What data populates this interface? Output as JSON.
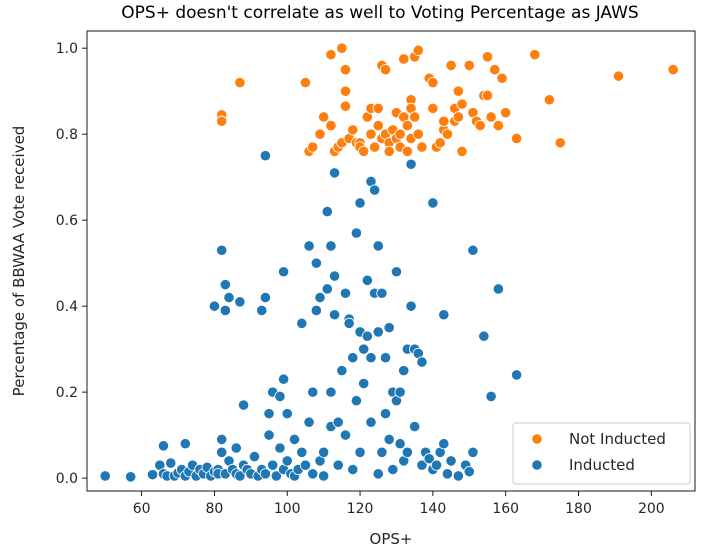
{
  "chart_data": {
    "type": "scatter",
    "title": "OPS+ doesn't correlate as well to Voting Percentage as JAWS",
    "xlabel": "OPS+",
    "ylabel": "Percentage of BBWAA Vote received",
    "xlim": [
      45,
      212
    ],
    "ylim": [
      -0.03,
      1.04
    ],
    "xticks": [
      60,
      80,
      100,
      120,
      140,
      160,
      180,
      200
    ],
    "yticks": [
      0.0,
      0.2,
      0.4,
      0.6,
      0.8,
      1.0
    ],
    "xtick_labels": [
      "60",
      "80",
      "100",
      "120",
      "140",
      "160",
      "180",
      "200"
    ],
    "ytick_labels": [
      "0.0",
      "0.2",
      "0.4",
      "0.6",
      "0.8",
      "1.0"
    ],
    "grid": false,
    "legend_position": "lower-right",
    "legend_order": [
      "Not Inducted",
      "Inducted"
    ],
    "series": [
      {
        "name": "Not Inducted",
        "color": "#ff7f0e",
        "points": [
          [
            82,
            0.845
          ],
          [
            82,
            0.83
          ],
          [
            87,
            0.92
          ],
          [
            105,
            0.92
          ],
          [
            106,
            0.76
          ],
          [
            107,
            0.77
          ],
          [
            109,
            0.8
          ],
          [
            110,
            0.84
          ],
          [
            112,
            0.82
          ],
          [
            112,
            0.985
          ],
          [
            113,
            0.76
          ],
          [
            114,
            0.77
          ],
          [
            115,
            0.78
          ],
          [
            115,
            1.0
          ],
          [
            116,
            0.95
          ],
          [
            116,
            0.9
          ],
          [
            116,
            0.865
          ],
          [
            117,
            0.79
          ],
          [
            118,
            0.81
          ],
          [
            119,
            0.78
          ],
          [
            120,
            0.78
          ],
          [
            120,
            0.77
          ],
          [
            121,
            0.76
          ],
          [
            122,
            0.84
          ],
          [
            123,
            0.86
          ],
          [
            123,
            0.8
          ],
          [
            124,
            0.77
          ],
          [
            125,
            0.86
          ],
          [
            125,
            0.82
          ],
          [
            126,
            0.79
          ],
          [
            126,
            0.96
          ],
          [
            127,
            0.95
          ],
          [
            127,
            0.8
          ],
          [
            128,
            0.78
          ],
          [
            128,
            0.76
          ],
          [
            129,
            0.81
          ],
          [
            130,
            0.85
          ],
          [
            130,
            0.79
          ],
          [
            131,
            0.8
          ],
          [
            131,
            0.77
          ],
          [
            132,
            0.975
          ],
          [
            132,
            0.84
          ],
          [
            133,
            0.82
          ],
          [
            133,
            0.76
          ],
          [
            134,
            0.88
          ],
          [
            134,
            0.86
          ],
          [
            134,
            0.79
          ],
          [
            135,
            0.98
          ],
          [
            135,
            0.84
          ],
          [
            136,
            0.995
          ],
          [
            136,
            0.8
          ],
          [
            137,
            0.77
          ],
          [
            139,
            0.93
          ],
          [
            140,
            0.92
          ],
          [
            140,
            0.86
          ],
          [
            141,
            0.77
          ],
          [
            142,
            0.78
          ],
          [
            143,
            0.81
          ],
          [
            143,
            0.83
          ],
          [
            144,
            0.8
          ],
          [
            145,
            0.96
          ],
          [
            146,
            0.83
          ],
          [
            146,
            0.86
          ],
          [
            147,
            0.9
          ],
          [
            147,
            0.84
          ],
          [
            148,
            0.87
          ],
          [
            148,
            0.76
          ],
          [
            150,
            0.96
          ],
          [
            151,
            0.85
          ],
          [
            152,
            0.83
          ],
          [
            153,
            0.82
          ],
          [
            154,
            0.89
          ],
          [
            155,
            0.98
          ],
          [
            155,
            0.89
          ],
          [
            156,
            0.84
          ],
          [
            157,
            0.95
          ],
          [
            158,
            0.82
          ],
          [
            159,
            0.93
          ],
          [
            160,
            0.85
          ],
          [
            163,
            0.79
          ],
          [
            168,
            0.985
          ],
          [
            172,
            0.88
          ],
          [
            175,
            0.78
          ],
          [
            191,
            0.935
          ],
          [
            206,
            0.95
          ]
        ]
      },
      {
        "name": "Inducted",
        "color": "#1f77b4",
        "points": [
          [
            50,
            0.005
          ],
          [
            57,
            0.003
          ],
          [
            63,
            0.008
          ],
          [
            65,
            0.03
          ],
          [
            66,
            0.075
          ],
          [
            66,
            0.01
          ],
          [
            67,
            0.005
          ],
          [
            68,
            0.035
          ],
          [
            69,
            0.005
          ],
          [
            70,
            0.012
          ],
          [
            71,
            0.02
          ],
          [
            72,
            0.08
          ],
          [
            72,
            0.005
          ],
          [
            73,
            0.015
          ],
          [
            74,
            0.03
          ],
          [
            75,
            0.005
          ],
          [
            76,
            0.02
          ],
          [
            77,
            0.01
          ],
          [
            78,
            0.025
          ],
          [
            79,
            0.005
          ],
          [
            80,
            0.015
          ],
          [
            80,
            0.4
          ],
          [
            81,
            0.02
          ],
          [
            81,
            0.01
          ],
          [
            82,
            0.53
          ],
          [
            82,
            0.09
          ],
          [
            82,
            0.06
          ],
          [
            83,
            0.45
          ],
          [
            83,
            0.39
          ],
          [
            83,
            0.01
          ],
          [
            84,
            0.42
          ],
          [
            84,
            0.04
          ],
          [
            85,
            0.02
          ],
          [
            86,
            0.07
          ],
          [
            86,
            0.01
          ],
          [
            87,
            0.41
          ],
          [
            87,
            0.005
          ],
          [
            88,
            0.17
          ],
          [
            88,
            0.03
          ],
          [
            89,
            0.02
          ],
          [
            90,
            0.01
          ],
          [
            91,
            0.05
          ],
          [
            92,
            0.005
          ],
          [
            93,
            0.39
          ],
          [
            93,
            0.02
          ],
          [
            94,
            0.75
          ],
          [
            94,
            0.42
          ],
          [
            94,
            0.01
          ],
          [
            95,
            0.15
          ],
          [
            95,
            0.1
          ],
          [
            96,
            0.2
          ],
          [
            96,
            0.03
          ],
          [
            97,
            0.005
          ],
          [
            98,
            0.19
          ],
          [
            98,
            0.07
          ],
          [
            99,
            0.48
          ],
          [
            99,
            0.23
          ],
          [
            99,
            0.02
          ],
          [
            100,
            0.15
          ],
          [
            100,
            0.04
          ],
          [
            101,
            0.01
          ],
          [
            102,
            0.09
          ],
          [
            102,
            0.005
          ],
          [
            103,
            0.02
          ],
          [
            104,
            0.36
          ],
          [
            104,
            0.06
          ],
          [
            105,
            0.03
          ],
          [
            106,
            0.54
          ],
          [
            106,
            0.13
          ],
          [
            107,
            0.2
          ],
          [
            107,
            0.01
          ],
          [
            108,
            0.39
          ],
          [
            108,
            0.5
          ],
          [
            109,
            0.42
          ],
          [
            109,
            0.04
          ],
          [
            110,
            0.06
          ],
          [
            110,
            0.005
          ],
          [
            111,
            0.62
          ],
          [
            111,
            0.44
          ],
          [
            112,
            0.2
          ],
          [
            112,
            0.54
          ],
          [
            112,
            0.12
          ],
          [
            113,
            0.71
          ],
          [
            113,
            0.47
          ],
          [
            113,
            0.38
          ],
          [
            114,
            0.13
          ],
          [
            114,
            0.03
          ],
          [
            115,
            0.25
          ],
          [
            116,
            0.43
          ],
          [
            116,
            0.1
          ],
          [
            117,
            0.37
          ],
          [
            117,
            0.36
          ],
          [
            118,
            0.28
          ],
          [
            118,
            0.02
          ],
          [
            119,
            0.57
          ],
          [
            119,
            0.18
          ],
          [
            120,
            0.64
          ],
          [
            120,
            0.34
          ],
          [
            120,
            0.06
          ],
          [
            121,
            0.3
          ],
          [
            121,
            0.22
          ],
          [
            122,
            0.46
          ],
          [
            122,
            0.33
          ],
          [
            123,
            0.69
          ],
          [
            123,
            0.28
          ],
          [
            123,
            0.13
          ],
          [
            124,
            0.67
          ],
          [
            124,
            0.43
          ],
          [
            125,
            0.54
          ],
          [
            125,
            0.34
          ],
          [
            125,
            0.01
          ],
          [
            126,
            0.43
          ],
          [
            126,
            0.06
          ],
          [
            127,
            0.28
          ],
          [
            127,
            0.15
          ],
          [
            128,
            0.35
          ],
          [
            128,
            0.09
          ],
          [
            129,
            0.2
          ],
          [
            129,
            0.02
          ],
          [
            130,
            0.48
          ],
          [
            130,
            0.18
          ],
          [
            131,
            0.2
          ],
          [
            131,
            0.08
          ],
          [
            132,
            0.25
          ],
          [
            132,
            0.04
          ],
          [
            133,
            0.76
          ],
          [
            133,
            0.3
          ],
          [
            133,
            0.06
          ],
          [
            134,
            0.73
          ],
          [
            134,
            0.4
          ],
          [
            135,
            0.3
          ],
          [
            135,
            0.12
          ],
          [
            136,
            0.29
          ],
          [
            137,
            0.27
          ],
          [
            137,
            0.03
          ],
          [
            138,
            0.06
          ],
          [
            139,
            0.045
          ],
          [
            140,
            0.64
          ],
          [
            140,
            0.02
          ],
          [
            141,
            0.03
          ],
          [
            142,
            0.06
          ],
          [
            143,
            0.38
          ],
          [
            143,
            0.08
          ],
          [
            144,
            0.01
          ],
          [
            145,
            0.04
          ],
          [
            147,
            0.005
          ],
          [
            149,
            0.03
          ],
          [
            150,
            0.015
          ],
          [
            151,
            0.53
          ],
          [
            151,
            0.06
          ],
          [
            154,
            0.33
          ],
          [
            156,
            0.19
          ],
          [
            158,
            0.44
          ],
          [
            163,
            0.24
          ]
        ]
      }
    ]
  }
}
